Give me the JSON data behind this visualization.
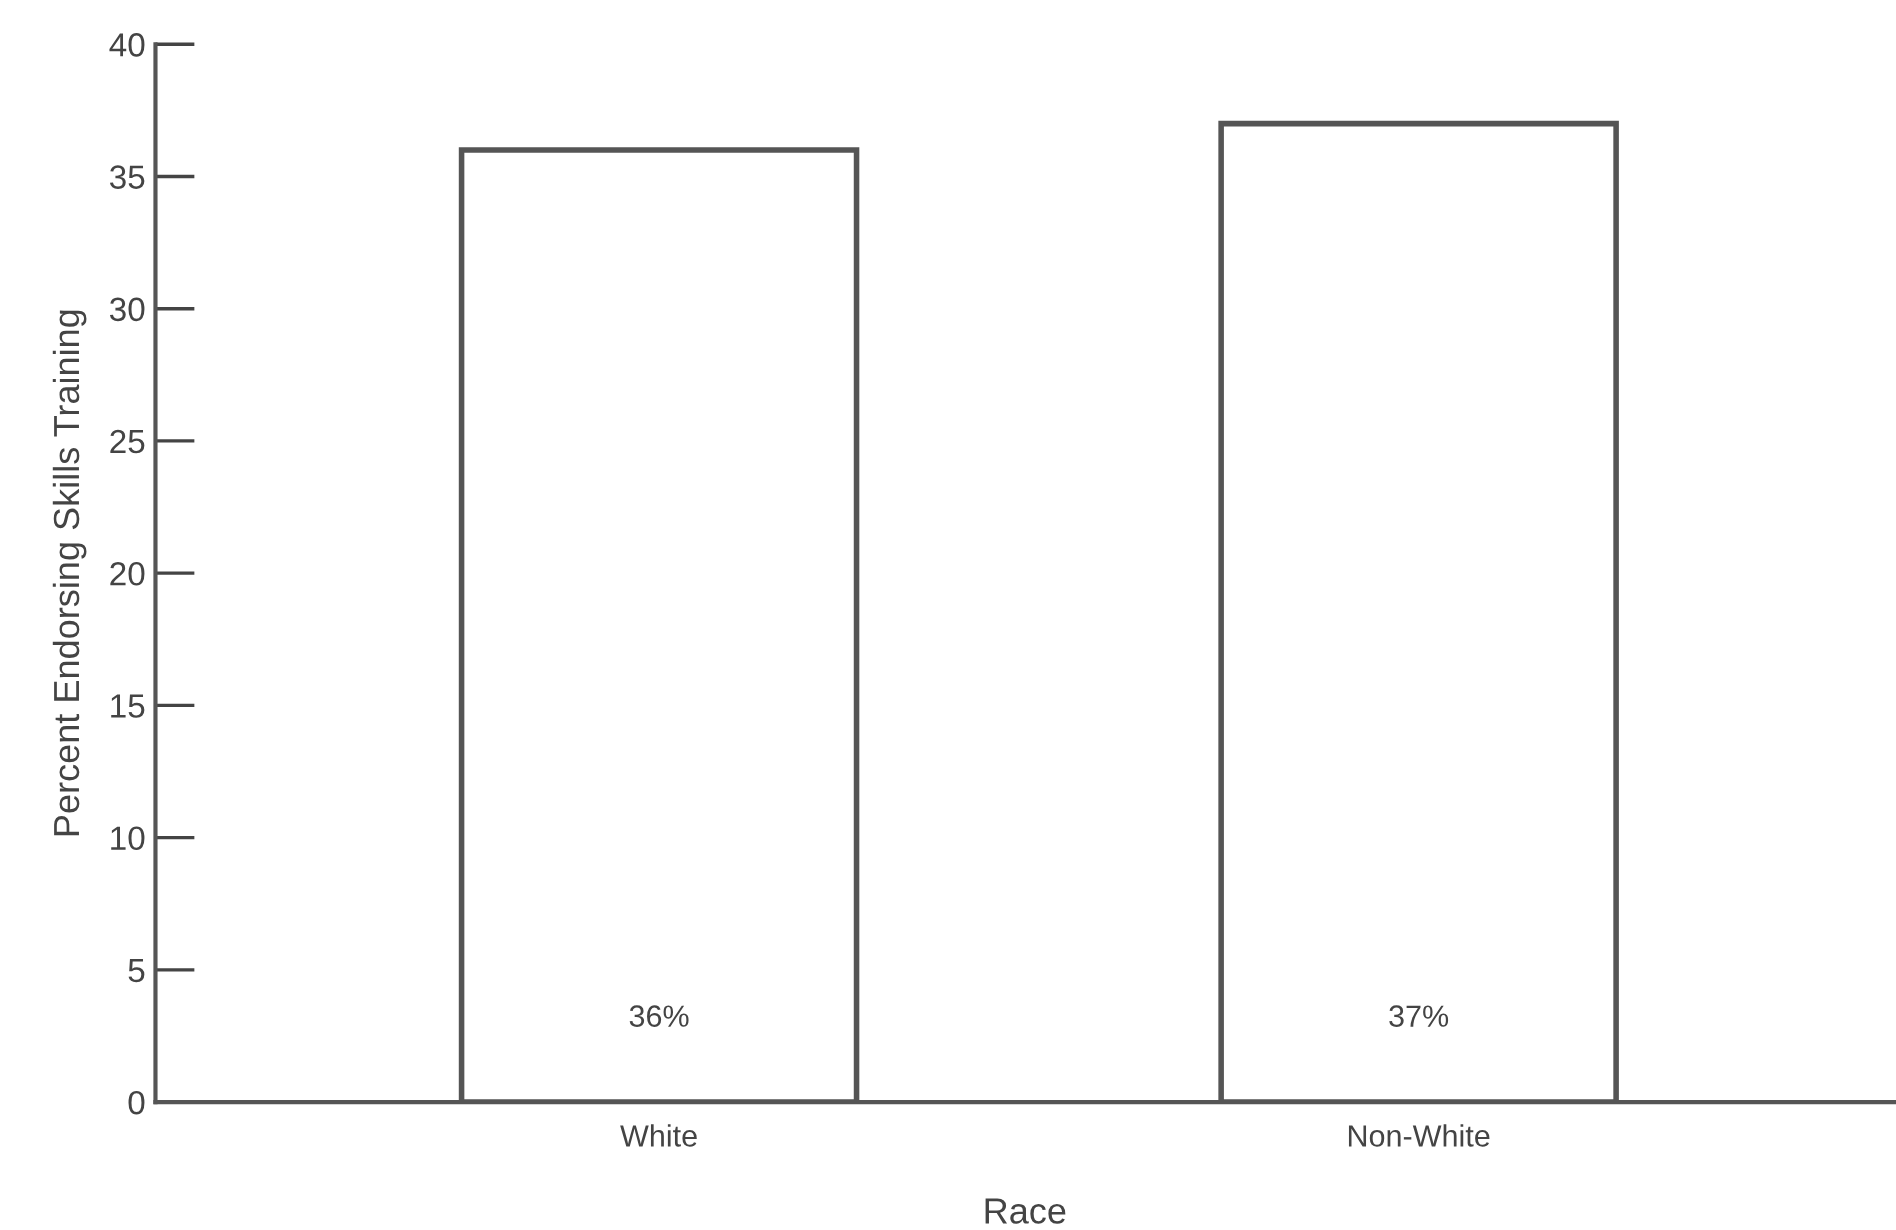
{
  "chart_data": {
    "type": "bar",
    "xlabel": "Race",
    "ylabel": "Percent Endorsing Skills Training",
    "categories": [
      "White",
      "Non-White"
    ],
    "values": [
      36,
      37
    ],
    "value_labels": [
      "36%",
      "37%"
    ],
    "color": "#ffffff",
    "ylim": [
      0,
      40
    ],
    "yticks": [
      0,
      5,
      10,
      15,
      20,
      25,
      30,
      35,
      40
    ],
    "grid": false,
    "legend": false
  }
}
